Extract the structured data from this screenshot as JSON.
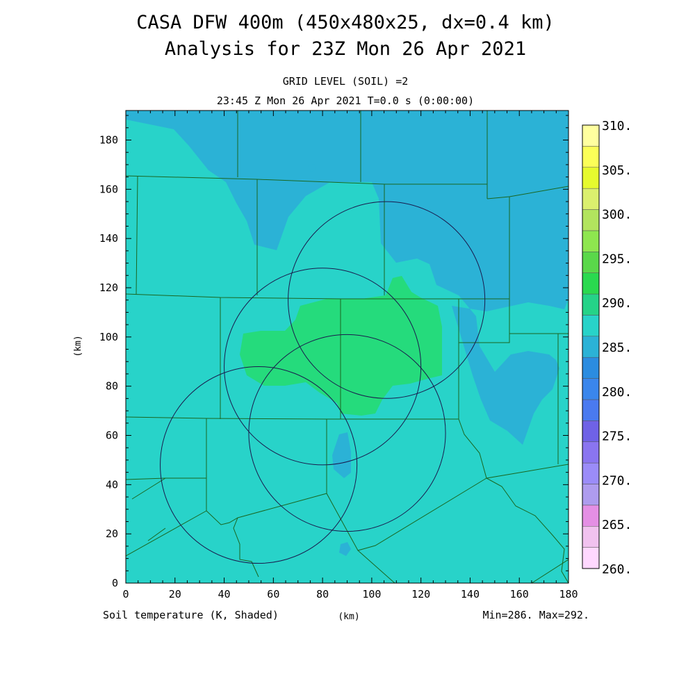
{
  "header": {
    "title_line1": "CASA DFW 400m (450x480x25, dx=0.4 km)",
    "title_line2": "Analysis for 23Z Mon 26 Apr 2021",
    "subtitle_line1": "GRID LEVEL (SOIL) =2",
    "subtitle_line2": "23:45 Z Mon 26 Apr 2021   T=0.0 s (0:00:00)"
  },
  "footer": {
    "variable_label": "Soil temperature (K, Shaded)",
    "unit_label": "(km)",
    "minmax_label": "Min=286. Max=292."
  },
  "colors": {
    "field_285": "#2bb2d6",
    "field_290": "#28d3c9",
    "field_295": "#25db7c",
    "boundary_line": "#1a6620",
    "range_ring": "#1a1a4d"
  },
  "chart_data": {
    "type": "heatmap",
    "title": "CASA DFW 400m (450x480x25, dx=0.4 km)",
    "subtitle": "Analysis for 23Z Mon 26 Apr 2021",
    "xlabel": "(km)",
    "ylabel": "(km)",
    "xlim": [
      0,
      180
    ],
    "ylim": [
      0,
      192
    ],
    "x_ticks": [
      0,
      20,
      40,
      60,
      80,
      100,
      120,
      140,
      160,
      180
    ],
    "y_ticks": [
      0,
      20,
      40,
      60,
      80,
      100,
      120,
      140,
      160,
      180
    ],
    "variable": "Soil temperature (K, Shaded)",
    "min": 286,
    "max": 292,
    "colorbar": {
      "levels": [
        "260.",
        "265.",
        "270.",
        "275.",
        "280.",
        "285.",
        "290.",
        "295.",
        "300.",
        "305.",
        "310."
      ],
      "colors": [
        "#ffd8ff",
        "#f1c2ef",
        "#e48fe4",
        "#ae9cee",
        "#9b8cf8",
        "#8a75f0",
        "#6f62e6",
        "#4a7af0",
        "#3a86ec",
        "#2b8ce0",
        "#2bb2d6",
        "#28d3c9",
        "#25d388",
        "#2ad94f",
        "#5ad84a",
        "#8ee64f",
        "#b2e45e",
        "#dbef6e",
        "#e6fa2e",
        "#fbff58",
        "#ffff9f"
      ]
    },
    "range_rings": [
      {
        "center_km": [
          54,
          48
        ],
        "radius_km": 40
      },
      {
        "center_km": [
          80,
          88
        ],
        "radius_km": 40
      },
      {
        "center_km": [
          90,
          61
        ],
        "radius_km": 40
      },
      {
        "center_km": [
          106,
          115
        ],
        "radius_km": 40
      }
    ],
    "dominant_field_value_K": 290
  }
}
